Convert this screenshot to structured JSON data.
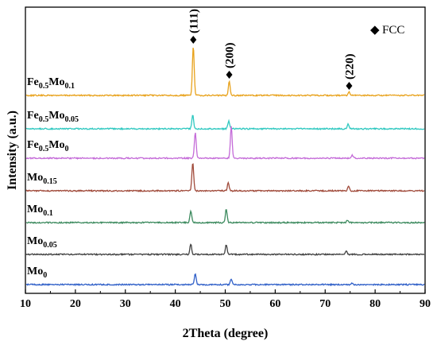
{
  "chart_data": {
    "type": "line",
    "xlabel": "2Theta (degree)",
    "ylabel": "Intensity (a.u.)",
    "xlim": [
      10,
      90
    ],
    "x_ticks": [
      "10",
      "20",
      "30",
      "40",
      "50",
      "60",
      "70",
      "80",
      "90"
    ],
    "legend": {
      "symbol": "◆",
      "text": "FCC",
      "position": "top-right"
    },
    "peak_labels": [
      {
        "text": "(111)",
        "x": 43.6
      },
      {
        "text": "(200)",
        "x": 50.8
      },
      {
        "text": "(220)",
        "x": 74.8
      }
    ],
    "series": [
      {
        "base": "Fe",
        "base_sub": "0.5",
        "elem": "Mo",
        "elem_sub": "0.1",
        "color": "#E8A21C",
        "peaks": [
          {
            "x": 43.6,
            "height": 62
          },
          {
            "x": 50.8,
            "height": 18
          },
          {
            "x": 74.8,
            "height": 4
          }
        ]
      },
      {
        "base": "Fe",
        "base_sub": "0.5",
        "elem": "Mo",
        "elem_sub": "0.05",
        "color": "#2EC8C0",
        "peaks": [
          {
            "x": 43.5,
            "height": 17
          },
          {
            "x": 50.7,
            "height": 10
          },
          {
            "x": 74.6,
            "height": 6
          }
        ]
      },
      {
        "base": "Fe",
        "base_sub": "0.5",
        "elem": "Mo",
        "elem_sub": "0",
        "color": "#C46BD8",
        "peaks": [
          {
            "x": 44.0,
            "height": 32
          },
          {
            "x": 51.2,
            "height": 40
          },
          {
            "x": 75.4,
            "height": 4
          }
        ]
      },
      {
        "base": "",
        "base_sub": "",
        "elem": "Mo",
        "elem_sub": "0.15",
        "color": "#A04A3A",
        "peaks": [
          {
            "x": 43.5,
            "height": 35
          },
          {
            "x": 50.6,
            "height": 10
          },
          {
            "x": 74.7,
            "height": 6
          }
        ]
      },
      {
        "base": "",
        "base_sub": "",
        "elem": "Mo",
        "elem_sub": "0.1",
        "color": "#3C8A5E",
        "peaks": [
          {
            "x": 43.1,
            "height": 15
          },
          {
            "x": 50.2,
            "height": 17
          },
          {
            "x": 74.5,
            "height": 3
          }
        ]
      },
      {
        "base": "",
        "base_sub": "",
        "elem": "Mo",
        "elem_sub": "0.05",
        "color": "#404040",
        "peaks": [
          {
            "x": 43.1,
            "height": 13
          },
          {
            "x": 50.2,
            "height": 12
          },
          {
            "x": 74.2,
            "height": 4
          }
        ]
      },
      {
        "base": "",
        "base_sub": "",
        "elem": "Mo",
        "elem_sub": "0",
        "color": "#2F5FC8",
        "peaks": [
          {
            "x": 44.0,
            "height": 14
          },
          {
            "x": 51.2,
            "height": 7
          },
          {
            "x": 75.4,
            "height": 2
          }
        ]
      }
    ]
  }
}
